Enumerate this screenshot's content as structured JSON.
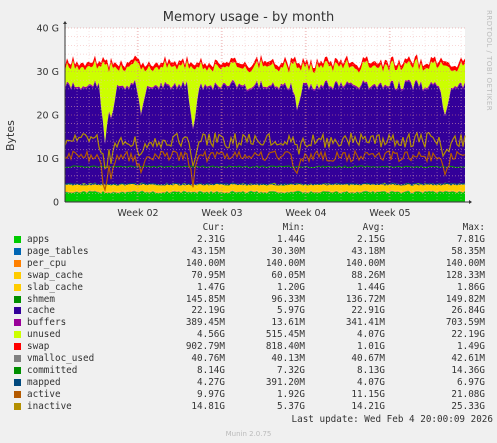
{
  "chart_data": {
    "type": "area",
    "title": "Memory usage - by month",
    "ylabel": "Bytes",
    "yticks": [
      "0",
      "10 G",
      "20 G",
      "30 G",
      "40 G"
    ],
    "ylim": [
      0,
      40
    ],
    "xticks": [
      "Week 02",
      "Week 03",
      "Week 04",
      "Week 05"
    ],
    "grid": true,
    "legend_position": "bottom",
    "legend_headers": [
      "Cur:",
      "Min:",
      "Avg:",
      "Max:"
    ],
    "series": [
      {
        "name": "apps",
        "color": "#00cc00",
        "cur": "2.31G",
        "min": "1.44G",
        "avg": "2.15G",
        "max": "7.81G"
      },
      {
        "name": "page_tables",
        "color": "#0066b3",
        "cur": "43.15M",
        "min": "30.30M",
        "avg": "43.18M",
        "max": "58.35M"
      },
      {
        "name": "per_cpu",
        "color": "#ff8000",
        "cur": "140.00M",
        "min": "140.00M",
        "avg": "140.00M",
        "max": "140.00M"
      },
      {
        "name": "swap_cache",
        "color": "#ffcc00",
        "cur": "70.95M",
        "min": "60.05M",
        "avg": "88.26M",
        "max": "128.33M"
      },
      {
        "name": "slab_cache",
        "color": "#ffcc00",
        "cur": "1.47G",
        "min": "1.20G",
        "avg": "1.44G",
        "max": "1.86G"
      },
      {
        "name": "shmem",
        "color": "#008f00",
        "cur": "145.85M",
        "min": "96.33M",
        "avg": "136.72M",
        "max": "149.82M"
      },
      {
        "name": "cache",
        "color": "#330099",
        "cur": "22.19G",
        "min": "5.97G",
        "avg": "22.91G",
        "max": "26.84G"
      },
      {
        "name": "buffers",
        "color": "#990099",
        "cur": "389.45M",
        "min": "13.61M",
        "avg": "341.41M",
        "max": "703.59M"
      },
      {
        "name": "unused",
        "color": "#ccff00",
        "cur": "4.56G",
        "min": "515.45M",
        "avg": "4.07G",
        "max": "22.19G"
      },
      {
        "name": "swap",
        "color": "#ff0000",
        "cur": "902.79M",
        "min": "818.40M",
        "avg": "1.01G",
        "max": "1.49G"
      },
      {
        "name": "vmalloc_used",
        "color": "#808080",
        "cur": "40.76M",
        "min": "40.13M",
        "avg": "40.67M",
        "max": "42.61M"
      },
      {
        "name": "committed",
        "color": "#008f00",
        "cur": "8.14G",
        "min": "7.32G",
        "avg": "8.13G",
        "max": "14.36G"
      },
      {
        "name": "mapped",
        "color": "#00487d",
        "cur": "4.27G",
        "min": "391.20M",
        "avg": "4.07G",
        "max": "6.97G"
      },
      {
        "name": "active",
        "color": "#b35a00",
        "cur": "9.97G",
        "min": "1.92G",
        "avg": "11.15G",
        "max": "21.08G"
      },
      {
        "name": "inactive",
        "color": "#b38f00",
        "cur": "14.81G",
        "min": "5.37G",
        "avg": "14.21G",
        "max": "25.33G"
      }
    ]
  },
  "side_text": "RRDTOOL / TOBI OETIKER",
  "footer": "Last update: Wed Feb  4 20:00:09 2026",
  "munin_version": "Munin 2.0.75"
}
